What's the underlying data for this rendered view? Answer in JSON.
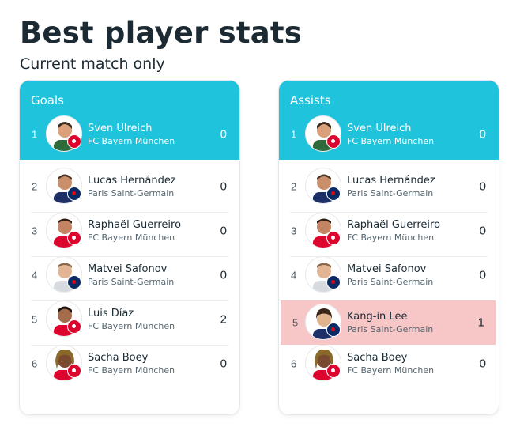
{
  "header": {
    "title": "Best player stats",
    "subtitle": "Current match only"
  },
  "colors": {
    "accent": "#1fc4dc",
    "highlight": "#f7c6c6"
  },
  "goals": {
    "title": "Goals",
    "rows": [
      {
        "rank": "1",
        "name": "Sven Ulreich",
        "team": "FC Bayern München",
        "value": "0"
      },
      {
        "rank": "2",
        "name": "Lucas Hernández",
        "team": "Paris Saint-Germain",
        "value": "0"
      },
      {
        "rank": "3",
        "name": "Raphaël Guerreiro",
        "team": "FC Bayern München",
        "value": "0"
      },
      {
        "rank": "4",
        "name": "Matvei Safonov",
        "team": "Paris Saint-Germain",
        "value": "0"
      },
      {
        "rank": "5",
        "name": "Luis Díaz",
        "team": "FC Bayern München",
        "value": "2"
      },
      {
        "rank": "6",
        "name": "Sacha Boey",
        "team": "FC Bayern München",
        "value": "0"
      }
    ]
  },
  "assists": {
    "title": "Assists",
    "rows": [
      {
        "rank": "1",
        "name": "Sven Ulreich",
        "team": "FC Bayern München",
        "value": "0"
      },
      {
        "rank": "2",
        "name": "Lucas Hernández",
        "team": "Paris Saint-Germain",
        "value": "0"
      },
      {
        "rank": "3",
        "name": "Raphaël Guerreiro",
        "team": "FC Bayern München",
        "value": "0"
      },
      {
        "rank": "4",
        "name": "Matvei Safonov",
        "team": "Paris Saint-Germain",
        "value": "0"
      },
      {
        "rank": "5",
        "name": "Kang-in Lee",
        "team": "Paris Saint-Germain",
        "value": "1"
      },
      {
        "rank": "6",
        "name": "Sacha Boey",
        "team": "FC Bayern München",
        "value": "0"
      }
    ]
  }
}
